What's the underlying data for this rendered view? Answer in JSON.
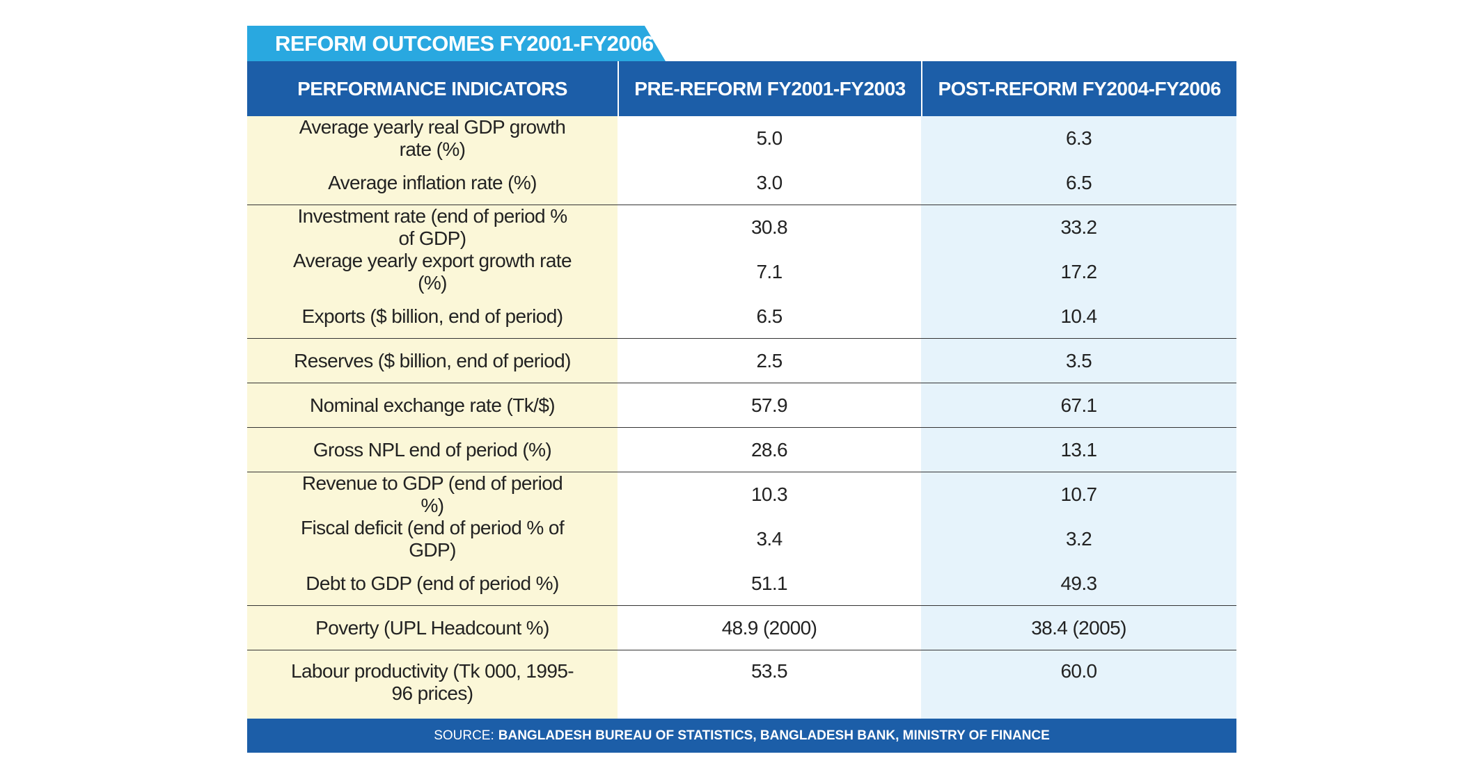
{
  "header": {
    "title": "REFORM OUTCOMES FY2001-FY2006"
  },
  "table": {
    "columns": [
      "PERFORMANCE INDICATORS",
      "PRE-REFORM FY2001-FY2003",
      "POST-REFORM FY2004-FY2006"
    ],
    "rows": [
      [
        "Average yearly real GDP growth rate (%)",
        "5.0",
        "6.3"
      ],
      [
        "Average inflation rate (%)",
        "3.0",
        "6.5"
      ],
      [
        "Investment rate (end of period % of GDP)",
        "30.8",
        "33.2"
      ],
      [
        "Average yearly export growth rate (%)",
        "7.1",
        "17.2"
      ],
      [
        "Exports ($ billion, end of period)",
        "6.5",
        "10.4"
      ],
      [
        "Reserves ($ billion, end of period)",
        "2.5",
        "3.5"
      ],
      [
        "Nominal exchange rate (Tk/$)",
        "57.9",
        "67.1"
      ],
      [
        "Gross NPL end of period (%)",
        "28.6",
        "13.1"
      ],
      [
        "Revenue to GDP (end of period %)",
        "10.3",
        "10.7"
      ],
      [
        "Fiscal deficit (end of period % of GDP)",
        "3.4",
        "3.2"
      ],
      [
        "Debt to GDP (end of period %)",
        "51.1",
        "49.3"
      ],
      [
        "Poverty (UPL Headcount %)",
        "48.9 (2000)",
        "38.4 (2005)"
      ],
      [
        "Labour productivity (Tk 000, 1995-96 prices)",
        "53.5",
        "60.0"
      ]
    ]
  },
  "source": {
    "label": "SOURCE:",
    "text": "BANGLADESH BUREAU OF STATISTICS, BANGLADESH BANK, MINISTRY OF FINANCE"
  }
}
